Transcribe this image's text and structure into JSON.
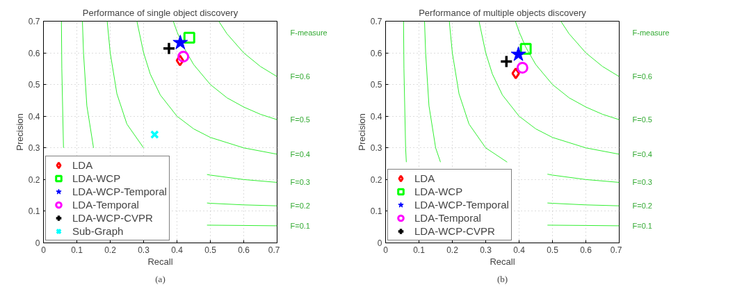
{
  "chart_data": [
    {
      "type": "scatter",
      "title": "Performance of single object discovery",
      "xlabel": "Recall",
      "ylabel": "Precision",
      "xlim": [
        0,
        0.7
      ],
      "ylim": [
        0,
        0.7
      ],
      "xticks": [
        0,
        0.1,
        0.2,
        0.3,
        0.4,
        0.5,
        0.6,
        0.7
      ],
      "yticks": [
        0,
        0.1,
        0.2,
        0.3,
        0.4,
        0.5,
        0.6,
        0.7
      ],
      "grid": true,
      "legend": "bottom left",
      "series": [
        {
          "type": "line",
          "name": "F=0.1",
          "color": "#33ee33",
          "x": [
            0.0538,
            0.055,
            0.06,
            0.2,
            0.49,
            0.6,
            0.7
          ],
          "values": [
            0.699,
            0.55,
            0.3,
            null,
            0.056,
            0.055,
            0.054
          ]
        },
        {
          "type": "line",
          "name": "F=0.2",
          "color": "#33ee33",
          "x": [
            0.1167,
            0.12,
            0.13,
            0.15,
            0.3,
            0.49,
            0.5,
            0.6,
            0.7
          ],
          "values": [
            0.7,
            0.6,
            0.433,
            0.3,
            null,
            0.126,
            0.125,
            0.12,
            0.117
          ]
        },
        {
          "type": "line",
          "name": "F=0.3",
          "color": "#33ee33",
          "x": [
            0.1909,
            0.2,
            0.22,
            0.25,
            0.3,
            0.4,
            0.49,
            0.5,
            0.6,
            0.7
          ],
          "values": [
            0.7,
            0.6,
            0.471,
            0.375,
            0.3,
            null,
            0.216,
            0.214,
            0.2,
            0.191
          ]
        },
        {
          "type": "line",
          "name": "F=0.4",
          "color": "#33ee33",
          "x": [
            0.28,
            0.3,
            0.32,
            0.35,
            0.4,
            0.45,
            0.5,
            0.6,
            0.7
          ],
          "values": [
            0.7,
            0.6,
            0.533,
            0.467,
            0.4,
            0.36,
            0.333,
            0.3,
            0.28
          ]
        },
        {
          "type": "line",
          "name": "F=0.5",
          "color": "#33ee33",
          "x": [
            0.3889,
            0.4,
            0.42,
            0.45,
            0.5,
            0.55,
            0.6,
            0.65,
            0.7
          ],
          "values": [
            0.7,
            0.667,
            0.618,
            0.563,
            0.5,
            0.458,
            0.429,
            0.406,
            0.389
          ]
        },
        {
          "type": "line",
          "name": "F=0.6",
          "color": "#33ee33",
          "x": [
            0.525,
            0.55,
            0.6,
            0.65,
            0.7
          ],
          "values": [
            0.7,
            0.66,
            0.6,
            0.557,
            0.525
          ]
        },
        {
          "name": "LDA",
          "color": "#ff0000",
          "marker": "diamond",
          "x": [
            0.409
          ],
          "values": [
            0.576
          ]
        },
        {
          "name": "LDA-WCP",
          "color": "#00ff00",
          "marker": "square",
          "x": [
            0.437
          ],
          "values": [
            0.648
          ]
        },
        {
          "name": "LDA-WCP-Temporal",
          "color": "#0000ff",
          "marker": "star",
          "x": [
            0.41
          ],
          "values": [
            0.632
          ]
        },
        {
          "name": "LDA-Temporal",
          "color": "#ff00ff",
          "marker": "circle",
          "x": [
            0.419
          ],
          "values": [
            0.588
          ]
        },
        {
          "name": "LDA-WCP-CVPR",
          "color": "#000000",
          "marker": "cross",
          "x": [
            0.376
          ],
          "values": [
            0.614
          ]
        },
        {
          "name": "Sub-Graph",
          "color": "#00ffff",
          "marker": "x",
          "x": [
            0.333
          ],
          "values": [
            0.342
          ]
        }
      ],
      "annotations": [
        "F-measure",
        "(a)"
      ]
    },
    {
      "type": "scatter",
      "title": "Performance of multiple objects discovery",
      "xlabel": "Recall",
      "ylabel": "Precision",
      "xlim": [
        0,
        0.7
      ],
      "ylim": [
        0,
        0.7
      ],
      "xticks": [
        0,
        0.1,
        0.2,
        0.3,
        0.4,
        0.5,
        0.6,
        0.7
      ],
      "yticks": [
        0,
        0.1,
        0.2,
        0.3,
        0.4,
        0.5,
        0.6,
        0.7
      ],
      "grid": true,
      "legend": "bottom left",
      "series": [
        {
          "type": "line",
          "name": "F=0.1",
          "color": "#33ee33",
          "x": [
            0.0538,
            0.055,
            0.06,
            0.0622,
            0.2,
            0.485,
            0.6,
            0.7
          ],
          "values": [
            0.699,
            0.55,
            0.3,
            0.255,
            null,
            0.056,
            0.055,
            0.054
          ]
        },
        {
          "type": "line",
          "name": "F=0.2",
          "color": "#33ee33",
          "x": [
            0.1167,
            0.12,
            0.13,
            0.15,
            0.1645,
            0.3,
            0.485,
            0.5,
            0.6,
            0.7
          ],
          "values": [
            0.7,
            0.6,
            0.433,
            0.3,
            0.255,
            null,
            0.126,
            0.125,
            0.12,
            0.117
          ]
        },
        {
          "type": "line",
          "name": "F=0.3",
          "color": "#33ee33",
          "x": [
            0.1909,
            0.2,
            0.22,
            0.25,
            0.3,
            0.3643,
            0.4,
            0.485,
            0.5,
            0.6,
            0.7
          ],
          "values": [
            0.7,
            0.6,
            0.471,
            0.375,
            0.3,
            0.255,
            null,
            0.217,
            0.214,
            0.2,
            0.191
          ]
        },
        {
          "type": "line",
          "name": "F=0.4",
          "color": "#33ee33",
          "x": [
            0.28,
            0.3,
            0.32,
            0.35,
            0.4,
            0.45,
            0.5,
            0.6,
            0.7
          ],
          "values": [
            0.7,
            0.6,
            0.533,
            0.467,
            0.4,
            0.36,
            0.333,
            0.3,
            0.28
          ]
        },
        {
          "type": "line",
          "name": "F=0.5",
          "color": "#33ee33",
          "x": [
            0.3889,
            0.4,
            0.42,
            0.45,
            0.5,
            0.55,
            0.6,
            0.65,
            0.7
          ],
          "values": [
            0.7,
            0.667,
            0.618,
            0.563,
            0.5,
            0.458,
            0.429,
            0.406,
            0.389
          ]
        },
        {
          "type": "line",
          "name": "F=0.6",
          "color": "#33ee33",
          "x": [
            0.525,
            0.55,
            0.6,
            0.65,
            0.7
          ],
          "values": [
            0.7,
            0.66,
            0.6,
            0.557,
            0.525
          ]
        },
        {
          "name": "LDA",
          "color": "#ff0000",
          "marker": "diamond",
          "x": [
            0.39
          ],
          "values": [
            0.535
          ]
        },
        {
          "name": "LDA-WCP",
          "color": "#00ff00",
          "marker": "square",
          "x": [
            0.42
          ],
          "values": [
            0.613
          ]
        },
        {
          "name": "LDA-WCP-Temporal",
          "color": "#0000ff",
          "marker": "star",
          "x": [
            0.398
          ],
          "values": [
            0.595
          ]
        },
        {
          "name": "LDA-Temporal",
          "color": "#ff00ff",
          "marker": "circle",
          "x": [
            0.41
          ],
          "values": [
            0.553
          ]
        },
        {
          "name": "LDA-WCP-CVPR",
          "color": "#000000",
          "marker": "cross",
          "x": [
            0.362
          ],
          "values": [
            0.573
          ]
        }
      ],
      "annotations": [
        "F-measure",
        "(b)"
      ]
    }
  ]
}
